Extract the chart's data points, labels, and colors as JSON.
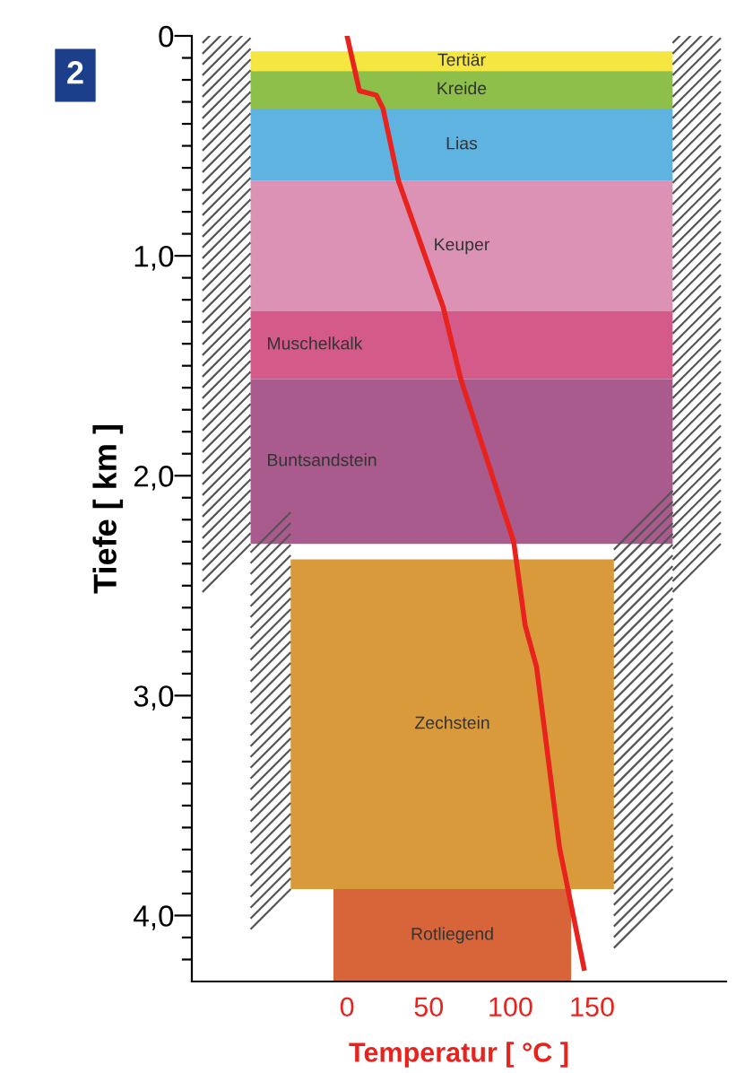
{
  "chart_data": {
    "type": "line",
    "xlabel": "Temperatur [ °C ]",
    "ylabel": "Tiefe [ km ]",
    "annotations": [
      "2"
    ],
    "series": [
      {
        "color": "#e8231e",
        "x": [
          0,
          7.6,
          18,
          22,
          31.5,
          58.7,
          69.6,
          102,
          109,
          116,
          130,
          145
        ],
        "values": [
          0,
          0.25,
          0.27,
          0.33,
          0.66,
          1.23,
          1.56,
          2.3,
          2.68,
          2.87,
          3.69,
          4.24
        ]
      }
    ],
    "xlim": [
      -95,
      232
    ],
    "xticks": [
      0,
      50,
      100,
      150
    ],
    "ylim": [
      4.3,
      0
    ],
    "yticks": [
      0,
      {
        "value": 0.1,
        "label": null
      },
      {
        "value": 0.2,
        "label": null
      },
      {
        "value": 0.3,
        "label": null
      },
      {
        "value": 0.4,
        "label": null
      },
      {
        "value": 0.5,
        "label": null
      },
      {
        "value": 0.6,
        "label": null
      },
      {
        "value": 0.7,
        "label": null
      },
      {
        "value": 0.8,
        "label": null
      },
      {
        "value": 0.9,
        "label": null
      },
      {
        "value": 1.0,
        "label": "1,0"
      },
      {
        "value": 1.1,
        "label": null
      },
      {
        "value": 1.2,
        "label": null
      },
      {
        "value": 1.3,
        "label": null
      },
      {
        "value": 1.4,
        "label": null
      },
      {
        "value": 1.5,
        "label": null
      },
      {
        "value": 1.6,
        "label": null
      },
      {
        "value": 1.7,
        "label": null
      },
      {
        "value": 1.8,
        "label": null
      },
      {
        "value": 1.9,
        "label": null
      },
      {
        "value": 2.0,
        "label": "2,0"
      },
      {
        "value": 2.1,
        "label": null
      },
      {
        "value": 2.2,
        "label": null
      },
      {
        "value": 2.3,
        "label": null
      },
      {
        "value": 2.4,
        "label": null
      },
      {
        "value": 2.5,
        "label": null
      },
      {
        "value": 2.6,
        "label": null
      },
      {
        "value": 2.7,
        "label": null
      },
      {
        "value": 2.8,
        "label": null
      },
      {
        "value": 2.9,
        "label": null
      },
      {
        "value": 3.0,
        "label": "3,0"
      },
      {
        "value": 3.1,
        "label": null
      },
      {
        "value": 3.2,
        "label": null
      },
      {
        "value": 3.3,
        "label": null
      },
      {
        "value": 3.4,
        "label": null
      },
      {
        "value": 3.5,
        "label": null
      },
      {
        "value": 3.6,
        "label": null
      },
      {
        "value": 3.7,
        "label": null
      },
      {
        "value": 3.8,
        "label": null
      },
      {
        "value": 3.9,
        "label": null
      },
      {
        "value": 4.0,
        "label": "4,0"
      },
      {
        "value": 4.1,
        "label": null
      },
      {
        "value": 4.2,
        "label": null
      }
    ],
    "bands": [
      {
        "axis": "y",
        "from": 0.07,
        "to": 0.16,
        "label": "Tertiär",
        "color": "#f5e642"
      },
      {
        "axis": "y",
        "from": 0.16,
        "to": 0.33,
        "label": "Kreide",
        "color": "#8dbf4a"
      },
      {
        "axis": "y",
        "from": 0.33,
        "to": 0.66,
        "label": "Lias",
        "color": "#5fb3e0"
      },
      {
        "axis": "y",
        "from": 0.66,
        "to": 1.25,
        "label": "Keuper",
        "color": "#dc92b4"
      },
      {
        "axis": "y",
        "from": 1.25,
        "to": 1.56,
        "label": "Muschelkalk",
        "color": "#d45a8a"
      },
      {
        "axis": "y",
        "from": 1.56,
        "to": 2.31,
        "label": "Buntsandstein",
        "color": "#a85b8c"
      },
      {
        "axis": "y",
        "from": 2.38,
        "to": 3.88,
        "label": "Zechstein",
        "color": "#d99a3c"
      },
      {
        "axis": "y",
        "from": 3.88,
        "to": 4.3,
        "label": "Rotliegend",
        "color": "#d8643a"
      }
    ],
    "grid": false
  }
}
